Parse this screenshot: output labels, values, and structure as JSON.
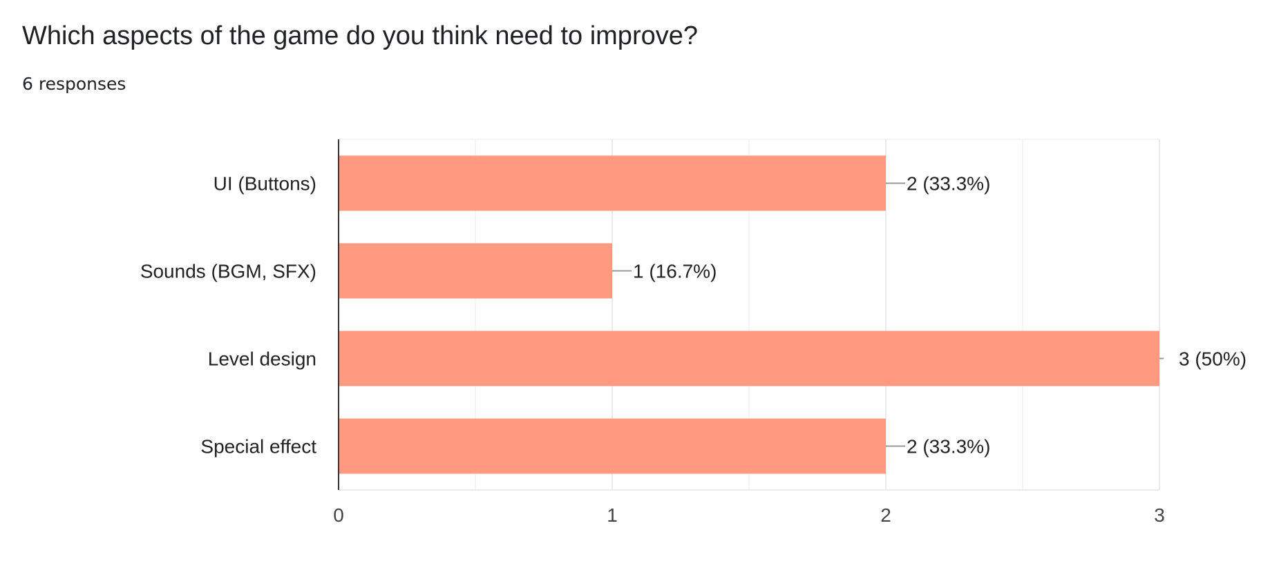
{
  "question": {
    "title": "Which aspects of the game do you think need to improve?",
    "responses": "6 responses"
  },
  "colors": {
    "bar": "#ff9a80",
    "gridline": "#ebebeb",
    "axis": "#333333",
    "leader": "#999999"
  },
  "chart_data": {
    "type": "bar",
    "orientation": "horizontal",
    "categories": [
      "UI (Buttons)",
      "Sounds (BGM, SFX)",
      "Level design",
      "Special effect"
    ],
    "values": [
      2,
      1,
      3,
      2
    ],
    "data_labels": [
      "2 (33.3%)",
      "1 (16.7%)",
      "3 (50%)",
      "2 (33.3%)"
    ],
    "xlim": [
      0,
      3
    ],
    "x_ticks": [
      0,
      1,
      2,
      3
    ],
    "grid": true,
    "legend": "none"
  }
}
